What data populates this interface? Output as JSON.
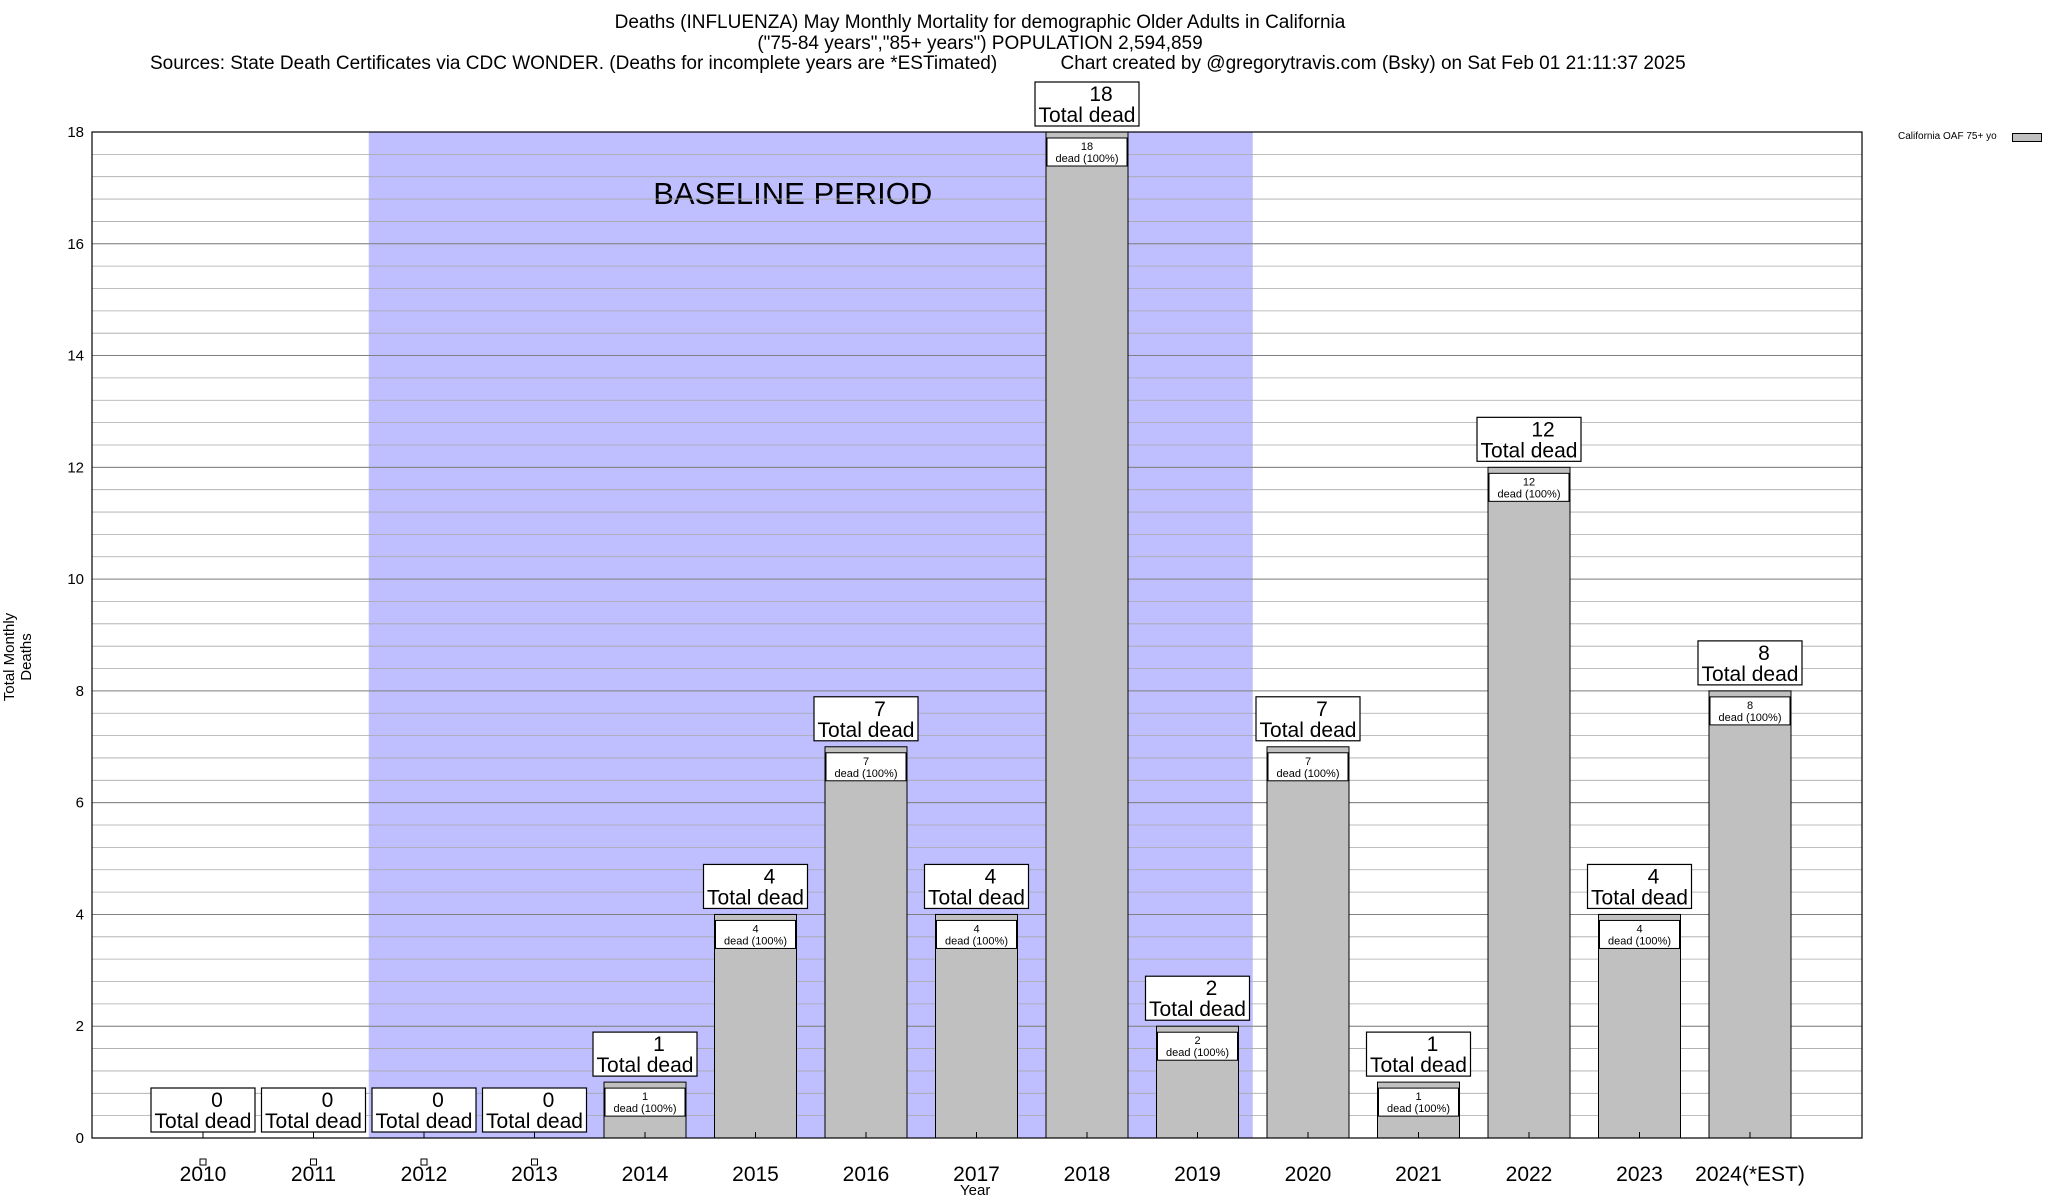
{
  "chart_data": {
    "type": "bar",
    "title": "Deaths (INFLUENZA) May Monthly Mortality for demographic Older Adults in California",
    "subtitle": "(\"75-84 years\",\"85+ years\") POPULATION 2,594,859",
    "source_line": "Sources: State Death Certificates via CDC WONDER. (Deaths for incomplete years are *ESTimated)            Chart created by @gregorytravis.com (Bsky) on Sat Feb 01 21:11:37 2025",
    "xlabel": "Year",
    "ylabel": "Total Monthly Deaths",
    "ylim": [
      0,
      18
    ],
    "yticks": [
      0,
      2,
      4,
      6,
      8,
      10,
      12,
      14,
      16,
      18
    ],
    "grid": true,
    "categories": [
      "2010",
      "2011",
      "2012",
      "2013",
      "2014",
      "2015",
      "2016",
      "2017",
      "2018",
      "2019",
      "2020",
      "2021",
      "2022",
      "2023",
      "2024(*EST)"
    ],
    "series": [
      {
        "name": "California OAF 75+ yo",
        "values": [
          0,
          0,
          0,
          0,
          1,
          4,
          7,
          4,
          18,
          2,
          7,
          1,
          12,
          4,
          8
        ],
        "color": "#c0c0c0"
      }
    ],
    "total_label": "Total dead",
    "inner_label_suffix": "dead (100%)",
    "baseline": {
      "label": "BASELINE PERIOD",
      "start_category": "2012",
      "end_category": "2019",
      "color": "#bfbfff"
    },
    "legend_position": "top-right"
  }
}
